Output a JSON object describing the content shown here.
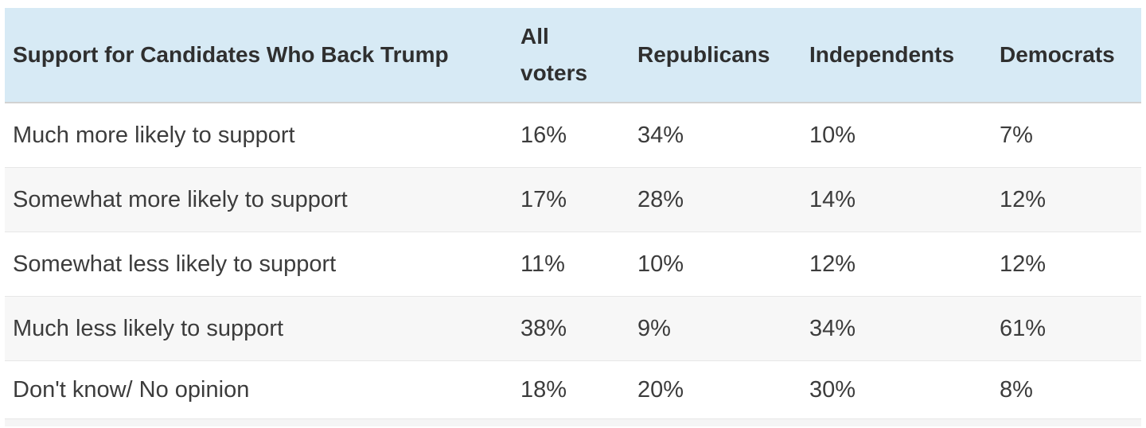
{
  "colors": {
    "header_bg": "#d7eaf5",
    "header_border": "#d2d2d2",
    "row_border": "#e7e7e7",
    "alt_row_bg": "#f7f7f7",
    "partial_row_bg": "#f5f5f5",
    "header_text": "#2f2f2f",
    "body_text": "#3c3c3c",
    "page_bg": "#ffffff"
  },
  "table": {
    "title": "Support for Candidates Who Back Trump",
    "columns": [
      {
        "label": "All voters"
      },
      {
        "label": "Republicans"
      },
      {
        "label": "Independents"
      },
      {
        "label": "Democrats"
      }
    ],
    "rows": [
      {
        "label": "Much more likely to support",
        "values": [
          "16%",
          "34%",
          "10%",
          "7%"
        ]
      },
      {
        "label": "Somewhat more likely to support",
        "values": [
          "17%",
          "28%",
          "14%",
          "12%"
        ]
      },
      {
        "label": "Somewhat less likely to support",
        "values": [
          "11%",
          "10%",
          "12%",
          "12%"
        ]
      },
      {
        "label": "Much less likely to support",
        "values": [
          "38%",
          "9%",
          "34%",
          "61%"
        ]
      },
      {
        "label": "Don't know/ No opinion",
        "values": [
          "18%",
          "20%",
          "30%",
          "8%"
        ]
      }
    ]
  },
  "chart_data": {
    "type": "table",
    "title": "Support for Candidates Who Back Trump",
    "columns": [
      "All voters",
      "Republicans",
      "Independents",
      "Democrats"
    ],
    "categories": [
      "Much more likely to support",
      "Somewhat more likely to support",
      "Somewhat less likely to support",
      "Much less likely to support",
      "Don't know/ No opinion"
    ],
    "series": [
      {
        "name": "All voters",
        "values": [
          16,
          17,
          11,
          38,
          18
        ]
      },
      {
        "name": "Republicans",
        "values": [
          34,
          28,
          10,
          9,
          20
        ]
      },
      {
        "name": "Independents",
        "values": [
          10,
          14,
          12,
          34,
          30
        ]
      },
      {
        "name": "Democrats",
        "values": [
          7,
          12,
          12,
          61,
          8
        ]
      }
    ],
    "unit": "%",
    "layout": {
      "header_background": "#d7eaf5",
      "zebra_striping": true,
      "grid": "horizontal-only"
    }
  }
}
